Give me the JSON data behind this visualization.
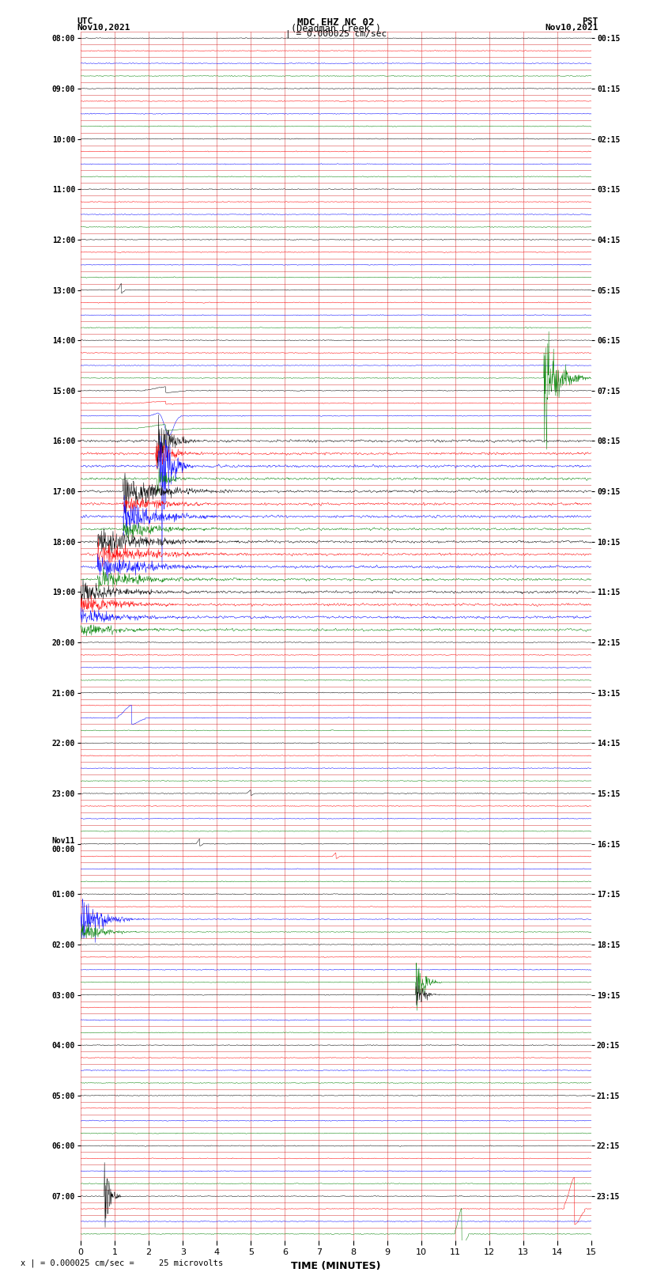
{
  "title_line1": "MDC EHZ NC 02",
  "title_line2": "(Deadman Creek )",
  "title_line3": "| = 0.000025 cm/sec",
  "left_label_top": "UTC",
  "left_label_date": "Nov10,2021",
  "right_label_top": "PST",
  "right_label_date": "Nov10,2021",
  "xlabel": "TIME (MINUTES)",
  "bottom_note": "x | = 0.000025 cm/sec =     25 microvolts",
  "utc_hour_labels": [
    "08:00",
    "09:00",
    "10:00",
    "11:00",
    "12:00",
    "13:00",
    "14:00",
    "15:00",
    "16:00",
    "17:00",
    "18:00",
    "19:00",
    "20:00",
    "21:00",
    "22:00",
    "23:00",
    "Nov11\n00:00",
    "01:00",
    "02:00",
    "03:00",
    "04:00",
    "05:00",
    "06:00",
    "07:00"
  ],
  "pst_hour_labels": [
    "00:15",
    "01:15",
    "02:15",
    "03:15",
    "04:15",
    "05:15",
    "06:15",
    "07:15",
    "08:15",
    "09:15",
    "10:15",
    "11:15",
    "12:15",
    "13:15",
    "14:15",
    "15:15",
    "16:15",
    "17:15",
    "18:15",
    "19:15",
    "20:15",
    "21:15",
    "22:15",
    "23:15"
  ],
  "colors": [
    "black",
    "red",
    "blue",
    "green"
  ],
  "n_hours": 24,
  "rows_per_hour": 4,
  "n_minutes": 15,
  "bg_color": "white",
  "grid_color_v": "#cc0000",
  "grid_color_h": "#cc0000",
  "noise_amplitude": 0.06,
  "xmin": 0,
  "xmax": 15,
  "sample_rate": 100
}
